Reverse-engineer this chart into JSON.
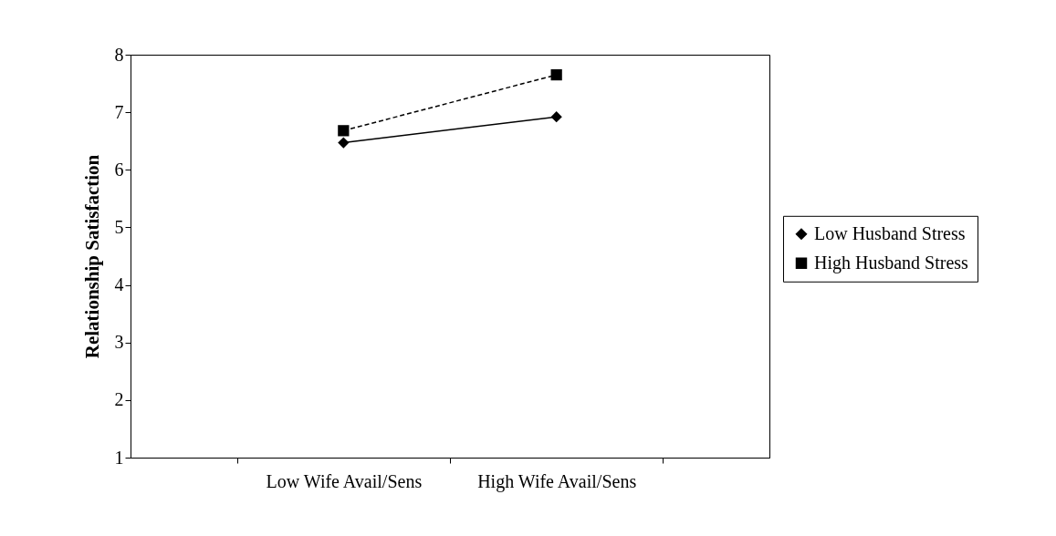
{
  "chart_data": {
    "type": "line",
    "ylabel": "Relationship Satisfaction",
    "categories": [
      "Low Wife Avail/Sens",
      "High Wife Avail/Sens"
    ],
    "series": [
      {
        "name": "Low Husband Stress",
        "color": "#000000",
        "values": [
          6.47,
          6.92
        ],
        "marker": "diamond",
        "line_style": "solid"
      },
      {
        "name": "High Husband Stress",
        "color": "#000000",
        "values": [
          6.68,
          7.65
        ],
        "marker": "square",
        "line_style": "dashed"
      }
    ],
    "ylim": [
      1,
      8
    ],
    "yticks": [
      1,
      2,
      3,
      4,
      5,
      6,
      7,
      8
    ],
    "grid": false,
    "legend": "right"
  }
}
